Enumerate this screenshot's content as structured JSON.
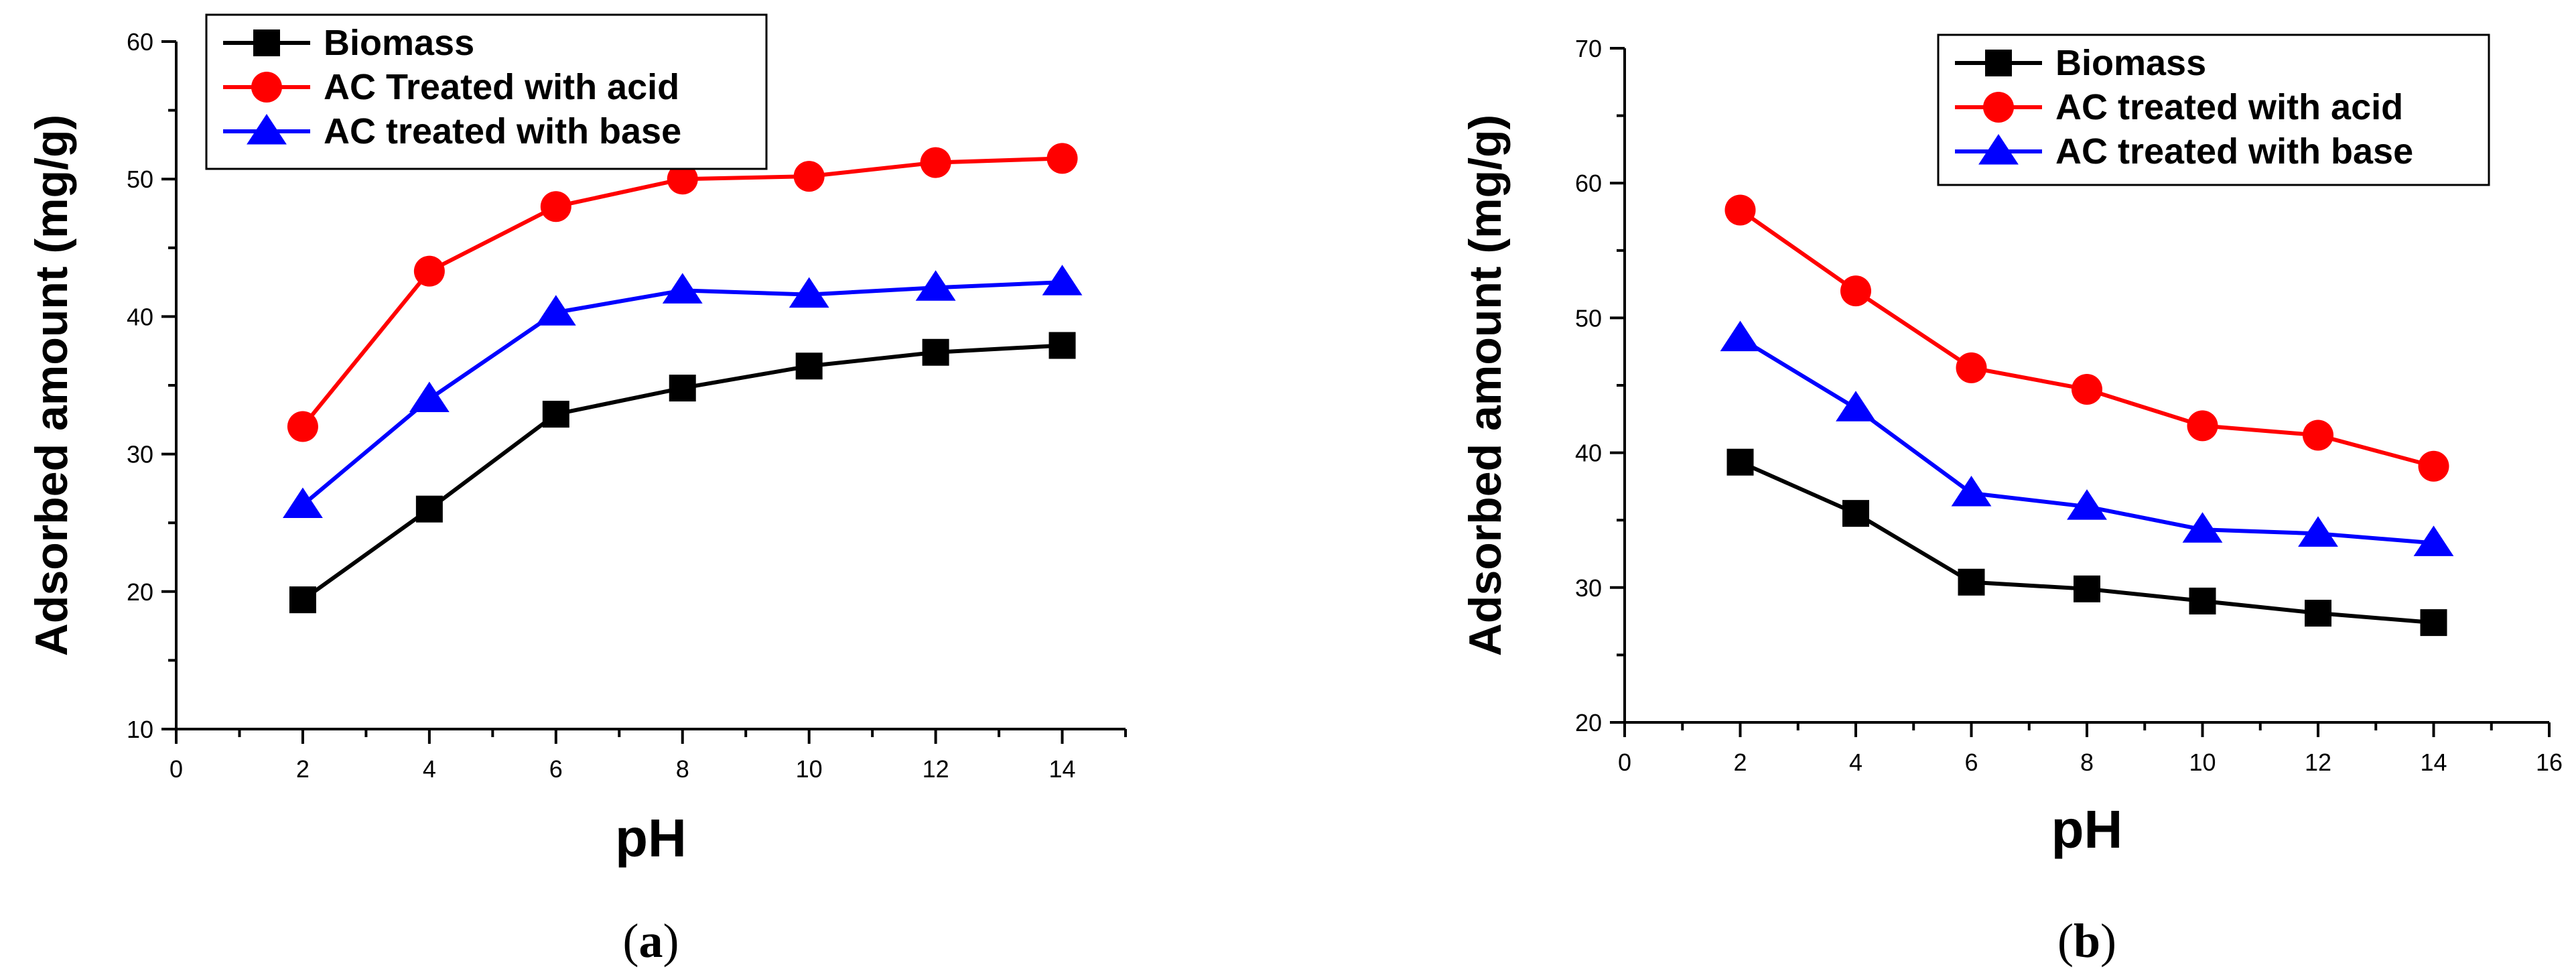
{
  "chart_data": [
    {
      "type": "line",
      "caption": {
        "open": "(",
        "letter": "a",
        "close": ")"
      },
      "xlabel": "pH",
      "ylabel": "Adsorbed amount (mg/g)",
      "xlim": [
        0,
        15
      ],
      "ylim": [
        10,
        60
      ],
      "x_ticks": [
        0,
        2,
        4,
        6,
        8,
        10,
        12,
        14
      ],
      "y_ticks": [
        10,
        20,
        30,
        40,
        50,
        60
      ],
      "legend_position": "top-left",
      "series": [
        {
          "name": "Biomass",
          "color": "#000000",
          "marker": "square",
          "x": [
            2,
            4,
            6,
            8,
            10,
            12,
            14
          ],
          "y": [
            19.4,
            26.0,
            32.9,
            34.8,
            36.4,
            37.4,
            37.9
          ]
        },
        {
          "name": "AC Treated with acid",
          "color": "#ff0000",
          "marker": "circle",
          "x": [
            2,
            4,
            6,
            8,
            10,
            12,
            14
          ],
          "y": [
            32.0,
            43.3,
            48.0,
            50.0,
            50.2,
            51.2,
            51.5
          ]
        },
        {
          "name": "AC treated with base",
          "color": "#0000ff",
          "marker": "triangle",
          "x": [
            2,
            4,
            6,
            8,
            10,
            12,
            14
          ],
          "y": [
            26.3,
            34.0,
            40.3,
            41.9,
            41.6,
            42.1,
            42.5
          ]
        }
      ]
    },
    {
      "type": "line",
      "caption": {
        "open": "(",
        "letter": "b",
        "close": ")"
      },
      "xlabel": "pH",
      "ylabel": "Adsorbed amount (mg/g)",
      "xlim": [
        0,
        16
      ],
      "ylim": [
        20,
        70
      ],
      "x_ticks": [
        0,
        2,
        4,
        6,
        8,
        10,
        12,
        14,
        16
      ],
      "y_ticks": [
        20,
        30,
        40,
        50,
        60,
        70
      ],
      "legend_position": "top-right",
      "series": [
        {
          "name": "Biomass",
          "color": "#000000",
          "marker": "square",
          "x": [
            2,
            4,
            6,
            8,
            10,
            12,
            14
          ],
          "y": [
            39.3,
            35.5,
            30.4,
            29.9,
            29.0,
            28.1,
            27.4
          ]
        },
        {
          "name": "AC treated with acid",
          "color": "#ff0000",
          "marker": "circle",
          "x": [
            2,
            4,
            6,
            8,
            10,
            12,
            14
          ],
          "y": [
            58.0,
            52.0,
            46.3,
            44.7,
            42.0,
            41.3,
            39.0
          ]
        },
        {
          "name": "AC treated with base",
          "color": "#0000ff",
          "marker": "triangle",
          "x": [
            2,
            4,
            6,
            8,
            10,
            12,
            14
          ],
          "y": [
            48.5,
            43.3,
            37.0,
            36.0,
            34.3,
            34.0,
            33.3
          ]
        }
      ]
    }
  ]
}
